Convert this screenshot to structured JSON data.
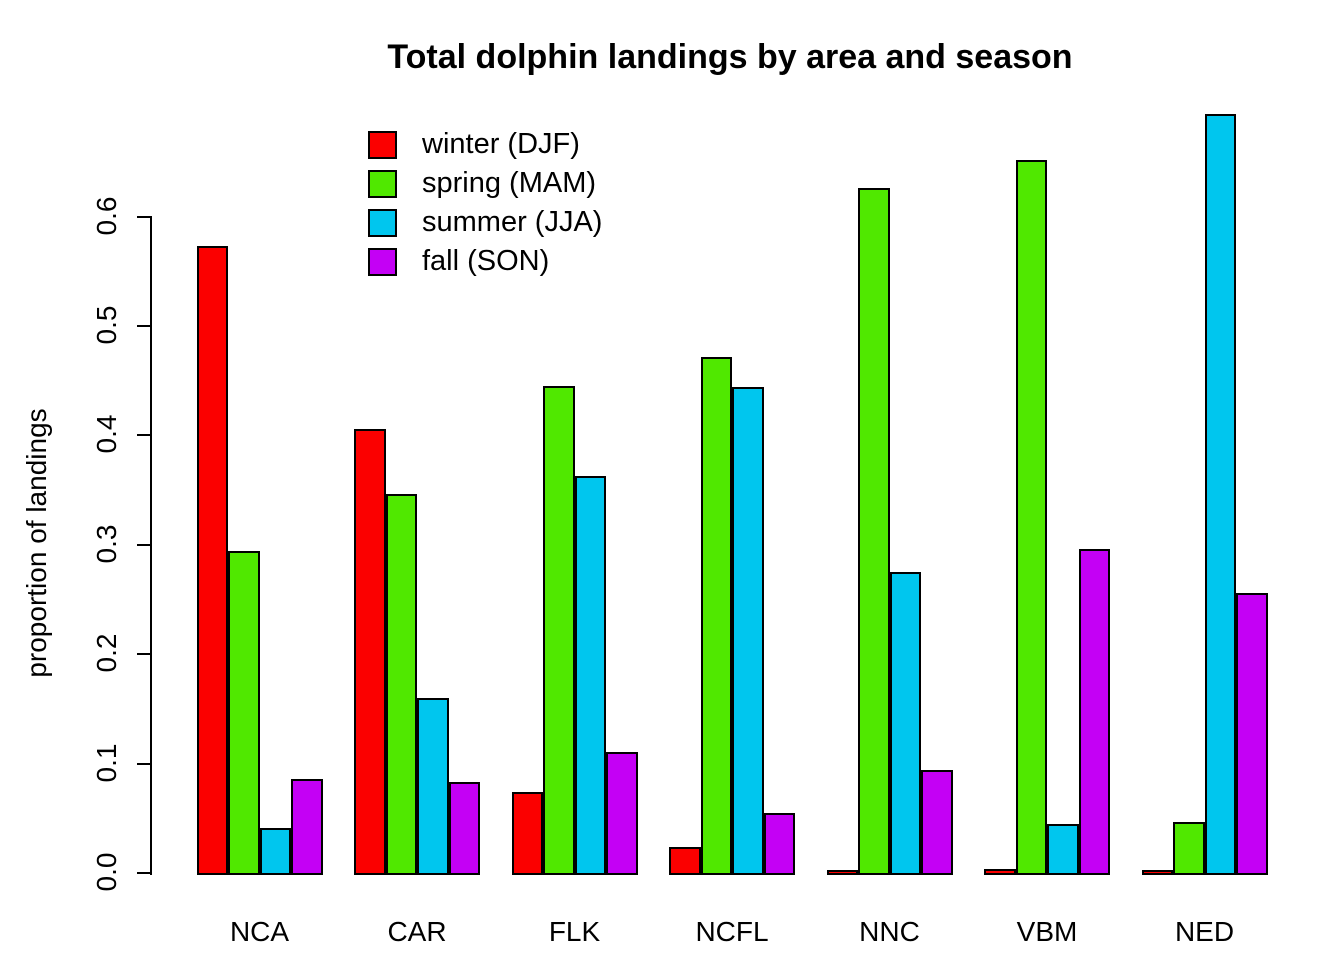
{
  "title": "Total dolphin landings by area and season",
  "y_axis": {
    "label": "proportion of landings",
    "tick_labels": [
      "0.0",
      "0.1",
      "0.2",
      "0.3",
      "0.4",
      "0.5",
      "0.6"
    ]
  },
  "legend": {
    "items": [
      {
        "label": "winter (DJF)",
        "color": "#fb0000"
      },
      {
        "label": "spring (MAM)",
        "color": "#50e800"
      },
      {
        "label": "summer (JJA)",
        "color": "#00c6ee"
      },
      {
        "label": "fall (SON)",
        "color": "#c400f5"
      }
    ]
  },
  "chart_data": {
    "type": "bar",
    "grouped": true,
    "categories": [
      "NCA",
      "CAR",
      "FLK",
      "NCFL",
      "NNC",
      "VBM",
      "NED"
    ],
    "series": [
      {
        "name": "winter (DJF)",
        "color": "#fb0000",
        "values": [
          0.573,
          0.406,
          0.074,
          0.024,
          0.003,
          0.004,
          0.003
        ]
      },
      {
        "name": "spring (MAM)",
        "color": "#50e800",
        "values": [
          0.294,
          0.346,
          0.445,
          0.472,
          0.626,
          0.652,
          0.047
        ]
      },
      {
        "name": "summer (JJA)",
        "color": "#00c6ee",
        "values": [
          0.041,
          0.16,
          0.363,
          0.444,
          0.275,
          0.045,
          0.694
        ]
      },
      {
        "name": "fall (SON)",
        "color": "#c400f5",
        "values": [
          0.086,
          0.083,
          0.111,
          0.055,
          0.094,
          0.296,
          0.256
        ]
      }
    ],
    "title": "Total dolphin landings by area and season",
    "xlabel": "",
    "ylabel": "proportion of landings",
    "ylim": [
      0.0,
      0.6
    ],
    "ytick_step": 0.1,
    "grid": false,
    "legend_position": "top-left-inside"
  }
}
